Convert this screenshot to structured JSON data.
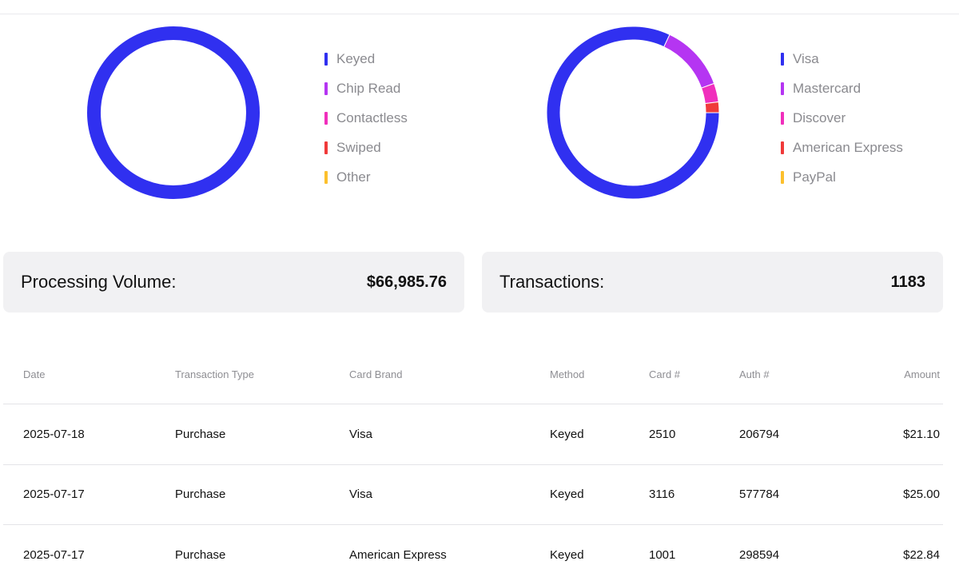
{
  "colors": {
    "blue": "#3030f0",
    "purple": "#b535f2",
    "pink": "#f02fbc",
    "red": "#f03a3a",
    "yellow": "#fcc02d",
    "track": "#ffffff"
  },
  "chart_data": [
    {
      "type": "pie",
      "categories": [
        "Keyed",
        "Chip Read",
        "Contactless",
        "Swiped",
        "Other"
      ],
      "values": [
        100,
        0,
        0,
        0,
        0
      ],
      "colors": [
        "#3030f0",
        "#b535f2",
        "#f02fbc",
        "#f03a3a",
        "#fcc02d"
      ],
      "legend": "right"
    },
    {
      "type": "pie",
      "categories": [
        "Visa",
        "Mastercard",
        "Discover",
        "American Express",
        "PayPal"
      ],
      "values": [
        82,
        12.5,
        3.5,
        2,
        0
      ],
      "colors": [
        "#3030f0",
        "#b535f2",
        "#f02fbc",
        "#f03a3a",
        "#fcc02d"
      ],
      "legend": "right"
    }
  ],
  "stats": {
    "volume_label": "Processing Volume:",
    "volume_value": "$66,985.76",
    "transactions_label": "Transactions:",
    "transactions_value": "1183"
  },
  "table": {
    "headers": [
      "Date",
      "Transaction Type",
      "Card Brand",
      "Method",
      "Card #",
      "Auth #",
      "Amount"
    ],
    "rows": [
      [
        "2025-07-18",
        "Purchase",
        "Visa",
        "Keyed",
        "2510",
        "206794",
        "$21.10"
      ],
      [
        "2025-07-17",
        "Purchase",
        "Visa",
        "Keyed",
        "3116",
        "577784",
        "$25.00"
      ],
      [
        "2025-07-17",
        "Purchase",
        "American Express",
        "Keyed",
        "1001",
        "298594",
        "$22.84"
      ]
    ]
  }
}
